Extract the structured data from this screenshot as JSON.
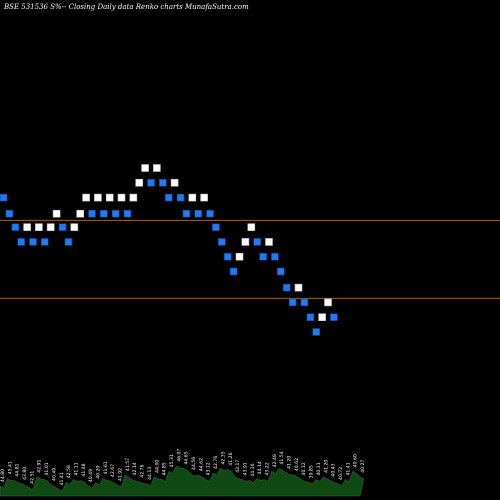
{
  "header": {
    "title": "BSE 531536  S%-- Closing Daily data Renko charts MunafaSutra.com"
  },
  "colors": {
    "background": "#000000",
    "up_brick": "#ffffff",
    "down_brick": "#1e7bf0",
    "brick_border": "#0a3a8a",
    "reference_line": "#b85c12",
    "volume_fill": "#0f4a14",
    "volume_stroke": "#2e7a2e"
  },
  "chart_data": {
    "type": "renko",
    "title": "BSE 531536  S%-- Closing Daily data Renko charts MunafaSutra.com",
    "bricks": [
      {
        "level": 44.85,
        "dir": "down"
      },
      {
        "level": 44.25,
        "dir": "down"
      },
      {
        "level": 43.75,
        "dir": "down"
      },
      {
        "level": 43.2,
        "dir": "down"
      },
      {
        "level": 43.75,
        "dir": "up"
      },
      {
        "level": 43.2,
        "dir": "down"
      },
      {
        "level": 43.75,
        "dir": "up"
      },
      {
        "level": 43.2,
        "dir": "down"
      },
      {
        "level": 43.75,
        "dir": "up"
      },
      {
        "level": 44.25,
        "dir": "up"
      },
      {
        "level": 43.75,
        "dir": "down"
      },
      {
        "level": 43.2,
        "dir": "down"
      },
      {
        "level": 43.75,
        "dir": "up"
      },
      {
        "level": 44.25,
        "dir": "up"
      },
      {
        "level": 44.85,
        "dir": "up"
      },
      {
        "level": 44.25,
        "dir": "down"
      },
      {
        "level": 44.85,
        "dir": "up"
      },
      {
        "level": 44.25,
        "dir": "down"
      },
      {
        "level": 44.85,
        "dir": "up"
      },
      {
        "level": 44.25,
        "dir": "down"
      },
      {
        "level": 44.85,
        "dir": "up"
      },
      {
        "level": 44.25,
        "dir": "down"
      },
      {
        "level": 44.85,
        "dir": "up"
      },
      {
        "level": 45.4,
        "dir": "up"
      },
      {
        "level": 45.95,
        "dir": "up"
      },
      {
        "level": 45.4,
        "dir": "down"
      },
      {
        "level": 45.95,
        "dir": "up"
      },
      {
        "level": 45.4,
        "dir": "down"
      },
      {
        "level": 44.85,
        "dir": "down"
      },
      {
        "level": 45.4,
        "dir": "up"
      },
      {
        "level": 44.85,
        "dir": "down"
      },
      {
        "level": 44.25,
        "dir": "down"
      },
      {
        "level": 44.85,
        "dir": "up"
      },
      {
        "level": 44.25,
        "dir": "down"
      },
      {
        "level": 44.85,
        "dir": "up"
      },
      {
        "level": 44.25,
        "dir": "down"
      },
      {
        "level": 43.75,
        "dir": "down"
      },
      {
        "level": 43.2,
        "dir": "down"
      },
      {
        "level": 42.65,
        "dir": "down"
      },
      {
        "level": 42.1,
        "dir": "down"
      },
      {
        "level": 42.65,
        "dir": "up"
      },
      {
        "level": 43.2,
        "dir": "up"
      },
      {
        "level": 43.75,
        "dir": "up"
      },
      {
        "level": 43.2,
        "dir": "down"
      },
      {
        "level": 42.65,
        "dir": "down"
      },
      {
        "level": 43.2,
        "dir": "up"
      },
      {
        "level": 42.65,
        "dir": "down"
      },
      {
        "level": 42.1,
        "dir": "down"
      },
      {
        "level": 41.5,
        "dir": "down"
      },
      {
        "level": 40.95,
        "dir": "down"
      },
      {
        "level": 41.5,
        "dir": "up"
      },
      {
        "level": 40.95,
        "dir": "down"
      },
      {
        "level": 40.4,
        "dir": "down"
      },
      {
        "level": 39.85,
        "dir": "down"
      },
      {
        "level": 40.4,
        "dir": "up"
      },
      {
        "level": 40.95,
        "dir": "up"
      },
      {
        "level": 40.4,
        "dir": "down"
      }
    ],
    "reference_lines": [
      44.0,
      41.1
    ],
    "y_range": [
      33.6,
      52.2
    ],
    "volume_labels": [
      "44.80",
      "45.41",
      "44.81",
      "43.80",
      "42.51",
      "42.91",
      "41.01",
      "40.49",
      "41.41",
      "42.58",
      "41.11",
      "41.48",
      "40.49",
      "40.20",
      "41.61",
      "42.67",
      "41.92",
      "41.57",
      "42.14",
      "42.76",
      "44.13",
      "44.00",
      "44.85",
      "45.31",
      "46.07",
      "44.65",
      "44.56",
      "44.62",
      "43.12",
      "42.76",
      "42.35",
      "41.26",
      "42.17",
      "43.91",
      "44.36",
      "44.14",
      "43.22",
      "42.48",
      "41.54",
      "41.20",
      "40.62",
      "40.12",
      "39.85",
      "40.11",
      "41.20",
      "40.43",
      "40.72",
      "41.41",
      "40.60",
      "40.27"
    ],
    "volume_heights": [
      0.18,
      0.32,
      0.28,
      0.22,
      0.15,
      0.35,
      0.3,
      0.2,
      0.12,
      0.25,
      0.3,
      0.28,
      0.18,
      0.24,
      0.32,
      0.27,
      0.2,
      0.38,
      0.3,
      0.26,
      0.22,
      0.35,
      0.3,
      0.45,
      0.55,
      0.5,
      0.4,
      0.38,
      0.3,
      0.42,
      0.5,
      0.48,
      0.35,
      0.3,
      0.28,
      0.32,
      0.3,
      0.45,
      0.5,
      0.42,
      0.38,
      0.3,
      0.25,
      0.3,
      0.35,
      0.28,
      0.22,
      0.3,
      0.45,
      0.35
    ]
  }
}
